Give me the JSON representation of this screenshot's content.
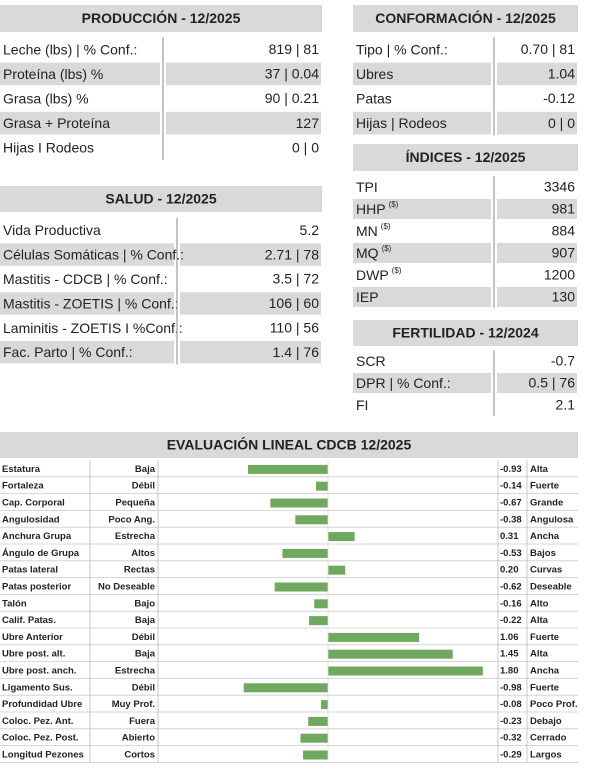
{
  "produccion": {
    "title": "PRODUCCIÓN - 12/2025",
    "rows": [
      {
        "label": "Leche (lbs) | % Conf.:",
        "value": "819 | 81"
      },
      {
        "label": "Proteína (lbs) %",
        "value": "37 | 0.04"
      },
      {
        "label": "Grasa (lbs) %",
        "value": "90 | 0.21"
      },
      {
        "label": "Grasa + Proteína",
        "value": "127"
      },
      {
        "label": "Hijas I Rodeos",
        "value": "0 | 0"
      }
    ]
  },
  "salud": {
    "title": "SALUD - 12/2025",
    "rows": [
      {
        "label": "Vida Productiva",
        "value": "5.2"
      },
      {
        "label": "Células Somáticas | % Conf.:",
        "value": "2.71 | 78"
      },
      {
        "label": "Mastitis - CDCB | % Conf.:",
        "value": "3.5 | 72"
      },
      {
        "label": "Mastitis - ZOETIS | % Conf.:",
        "value": "106 | 60"
      },
      {
        "label": "Laminitis - ZOETIS I %Conf.:",
        "value": "110 | 56"
      },
      {
        "label": "Fac. Parto | % Conf.:",
        "value": "1.4 | 76"
      }
    ]
  },
  "conformacion": {
    "title": "CONFORMACIÓN - 12/2025",
    "rows": [
      {
        "label": "Tipo | % Conf.:",
        "value": "0.70 | 81"
      },
      {
        "label": "Ubres",
        "value": "1.04"
      },
      {
        "label": "Patas",
        "value": "-0.12"
      },
      {
        "label": "Hijas | Rodeos",
        "value": "0 | 0"
      }
    ]
  },
  "indices": {
    "title": "ÍNDICES - 12/2025",
    "rows": [
      {
        "label": "TPI",
        "value": "3346"
      },
      {
        "label": "HHP",
        "unit": "($)",
        "value": "981"
      },
      {
        "label": "MN",
        "unit": "($)",
        "value": "884"
      },
      {
        "label": "MQ",
        "unit": "($)",
        "value": "907"
      },
      {
        "label": "DWP",
        "unit": "($)",
        "value": "1200"
      },
      {
        "label": "IEP",
        "value": "130"
      }
    ]
  },
  "fertilidad": {
    "title": "FERTILIDAD - 12/2024",
    "rows": [
      {
        "label": "SCR",
        "value": "-0.7"
      },
      {
        "label": "DPR | % Conf.:",
        "value": "0.5 | 76"
      },
      {
        "label": "FI",
        "value": "2.1"
      }
    ]
  },
  "lineal": {
    "title": "EVALUACIÓN LINEAL CDCB 12/2025",
    "color": "#6fa85e",
    "rows": [
      {
        "trait": "Estatura",
        "low": "Baja",
        "high": "Alta",
        "value": -0.93,
        "value_label": "-0.93"
      },
      {
        "trait": "Fortaleza",
        "low": "Débil",
        "high": "Fuerte",
        "value": -0.14,
        "value_label": "-0.14"
      },
      {
        "trait": "Cap. Corporal",
        "low": "Pequeña",
        "high": "Grande",
        "value": -0.67,
        "value_label": "-0.67"
      },
      {
        "trait": "Angulosidad",
        "low": "Poco Ang.",
        "high": "Angulosa",
        "value": -0.38,
        "value_label": "-0.38"
      },
      {
        "trait": "Anchura Grupa",
        "low": "Estrecha",
        "high": "Ancha",
        "value": 0.31,
        "value_label": "0.31"
      },
      {
        "trait": "Ángulo de Grupa",
        "low": "Altos",
        "high": "Bajos",
        "value": -0.53,
        "value_label": "-0.53"
      },
      {
        "trait": "Patas lateral",
        "low": "Rectas",
        "high": "Curvas",
        "value": 0.2,
        "value_label": "0.20"
      },
      {
        "trait": "Patas posterior",
        "low": "No Deseable",
        "high": "Deseable",
        "value": -0.62,
        "value_label": "-0.62"
      },
      {
        "trait": "Talón",
        "low": "Bajo",
        "high": "Alto",
        "value": -0.16,
        "value_label": "-0.16"
      },
      {
        "trait": "Calif. Patas.",
        "low": "Baja",
        "high": "Alta",
        "value": -0.22,
        "value_label": "-0.22"
      },
      {
        "trait": "Ubre Anterior",
        "low": "Débil",
        "high": "Fuerte",
        "value": 1.06,
        "value_label": "1.06"
      },
      {
        "trait": "Ubre post. alt.",
        "low": "Baja",
        "high": "Alta",
        "value": 1.45,
        "value_label": "1.45"
      },
      {
        "trait": "Ubre post. anch.",
        "low": "Estrecha",
        "high": "Ancha",
        "value": 1.8,
        "value_label": "1.80"
      },
      {
        "trait": "Ligamento Sus.",
        "low": "Débil",
        "high": "Fuerte",
        "value": -0.98,
        "value_label": "-0.98"
      },
      {
        "trait": "Profundidad Ubre",
        "low": "Muy Prof.",
        "high": "Poco Prof.",
        "value": -0.08,
        "value_label": "-0.08"
      },
      {
        "trait": "Coloc. Pez. Ant.",
        "low": "Fuera",
        "high": "Debajo",
        "value": -0.23,
        "value_label": "-0.23"
      },
      {
        "trait": "Coloc. Pez. Post.",
        "low": "Abierto",
        "high": "Cerrado",
        "value": -0.32,
        "value_label": "-0.32"
      },
      {
        "trait": "Longitud Pezones",
        "low": "Cortos",
        "high": "Largos",
        "value": -0.29,
        "value_label": "-0.29"
      }
    ]
  }
}
